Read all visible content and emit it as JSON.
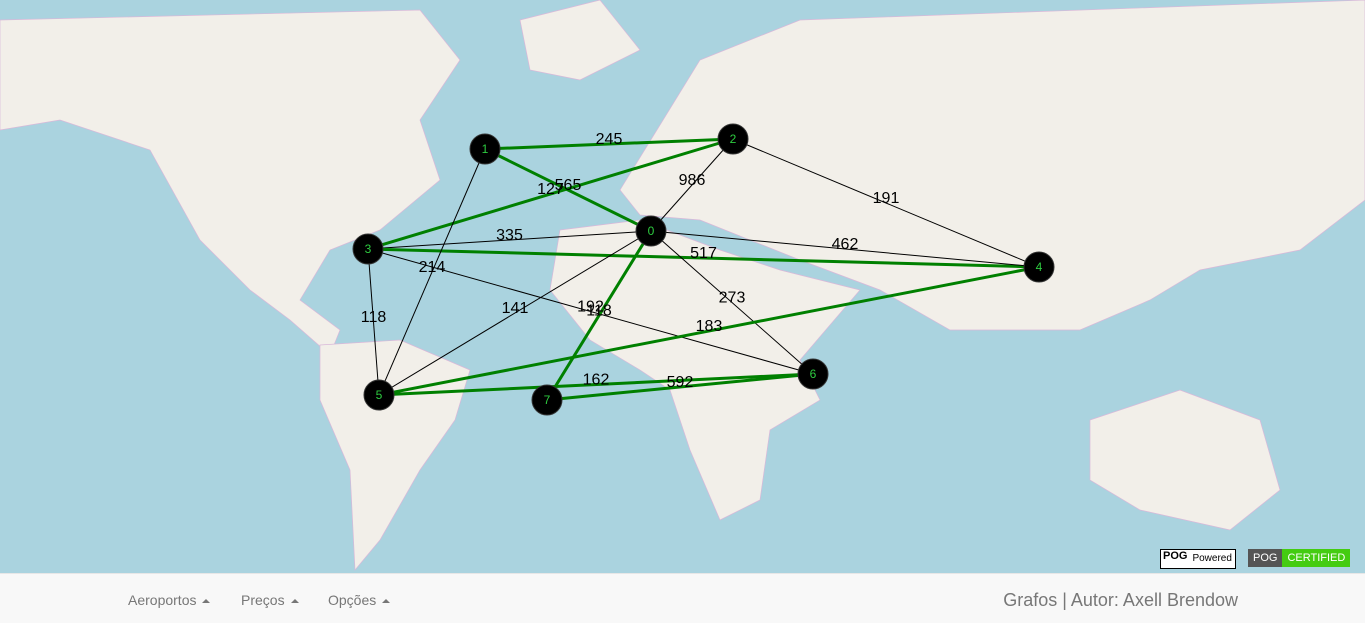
{
  "graph": {
    "nodes": [
      {
        "label": "0"
      },
      {
        "label": "1"
      },
      {
        "label": "2"
      },
      {
        "label": "3"
      },
      {
        "label": "4"
      },
      {
        "label": "5"
      },
      {
        "label": "6"
      },
      {
        "label": "7"
      }
    ],
    "edges": [
      {
        "from": 1,
        "to": 2,
        "weight": 245,
        "highlighted": true
      },
      {
        "from": 1,
        "to": 0,
        "weight": 565,
        "highlighted": true
      },
      {
        "from": 3,
        "to": 2,
        "weight": 127,
        "highlighted": true
      },
      {
        "from": 2,
        "to": 0,
        "weight": 986,
        "highlighted": false
      },
      {
        "from": 2,
        "to": 4,
        "weight": 191,
        "highlighted": false
      },
      {
        "from": 3,
        "to": 0,
        "weight": 335,
        "highlighted": false
      },
      {
        "from": 3,
        "to": 4,
        "weight": 517,
        "highlighted": true
      },
      {
        "from": 0,
        "to": 4,
        "weight": 462,
        "highlighted": false
      },
      {
        "from": 3,
        "to": 6,
        "weight": 192,
        "highlighted": false
      },
      {
        "from": 3,
        "to": 5,
        "weight": 118,
        "highlighted": false
      },
      {
        "from": 1,
        "to": 5,
        "weight": 214,
        "highlighted": false
      },
      {
        "from": 0,
        "to": 5,
        "weight": 141,
        "highlighted": false
      },
      {
        "from": 0,
        "to": 6,
        "weight": 273,
        "highlighted": false
      },
      {
        "from": 0,
        "to": 7,
        "weight": 118,
        "highlighted": true
      },
      {
        "from": 5,
        "to": 4,
        "weight": 183,
        "highlighted": true
      },
      {
        "from": 5,
        "to": 6,
        "weight": 162,
        "highlighted": true
      },
      {
        "from": 7,
        "to": 6,
        "weight": 592,
        "highlighted": true
      }
    ]
  },
  "badges": {
    "powered": {
      "brand": "POG",
      "text": "Powered"
    },
    "certified": {
      "brand": "POG",
      "text": "CERTIFIED"
    }
  },
  "navbar": {
    "menus": [
      "Aeroportos",
      "Preços",
      "Opções"
    ],
    "brand": "Grafos | Autor: Axell Brendow"
  }
}
